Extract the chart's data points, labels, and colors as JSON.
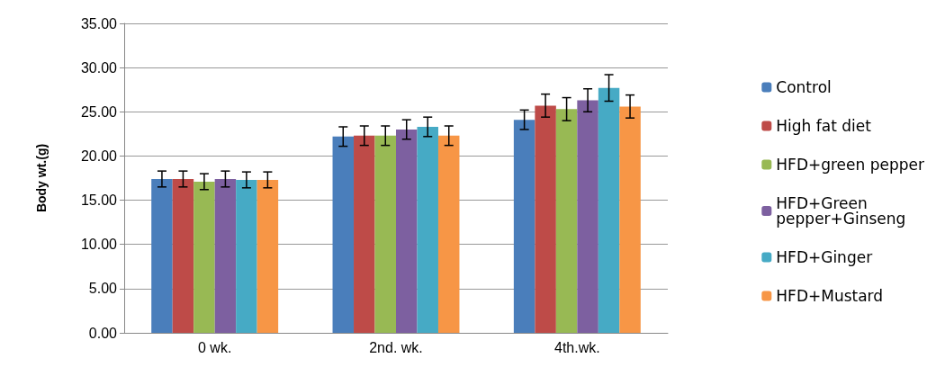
{
  "chart_data": {
    "type": "bar",
    "ylabel": "Body wt.(g)",
    "categories": [
      "0 wk.",
      "2nd. wk.",
      "4th.wk."
    ],
    "series": [
      {
        "name": "Control",
        "color": "#4a7ebb",
        "values": [
          17.4,
          22.2,
          24.1
        ],
        "errors": [
          0.9,
          1.1,
          1.1
        ]
      },
      {
        "name": "High fat diet",
        "color": "#be4b48",
        "values": [
          17.4,
          22.3,
          25.7
        ],
        "errors": [
          0.9,
          1.1,
          1.3
        ]
      },
      {
        "name": "HFD+green pepper",
        "color": "#98b954",
        "values": [
          17.1,
          22.3,
          25.3
        ],
        "errors": [
          0.9,
          1.1,
          1.3
        ]
      },
      {
        "name": "HFD+Green pepper+Ginseng",
        "color": "#7d60a0",
        "values": [
          17.4,
          23.0,
          26.3
        ],
        "errors": [
          0.9,
          1.1,
          1.3
        ]
      },
      {
        "name": "HFD+Ginger",
        "color": "#46aac5",
        "values": [
          17.3,
          23.3,
          27.7
        ],
        "errors": [
          0.9,
          1.1,
          1.5
        ]
      },
      {
        "name": "HFD+Mustard",
        "color": "#f79646",
        "values": [
          17.3,
          22.3,
          25.6
        ],
        "errors": [
          0.9,
          1.1,
          1.3
        ]
      }
    ],
    "ylim": [
      0,
      35
    ],
    "yticks": [
      {
        "value": 0,
        "label": "0.00"
      },
      {
        "value": 5,
        "label": "5.00"
      },
      {
        "value": 10,
        "label": "10.00"
      },
      {
        "value": 15,
        "label": "15.00"
      },
      {
        "value": 20,
        "label": "20.00"
      },
      {
        "value": 25,
        "label": "25.00"
      },
      {
        "value": 30,
        "label": "30.00"
      },
      {
        "value": 35,
        "label": "35.00"
      }
    ],
    "grid": "y",
    "legend": "right"
  }
}
